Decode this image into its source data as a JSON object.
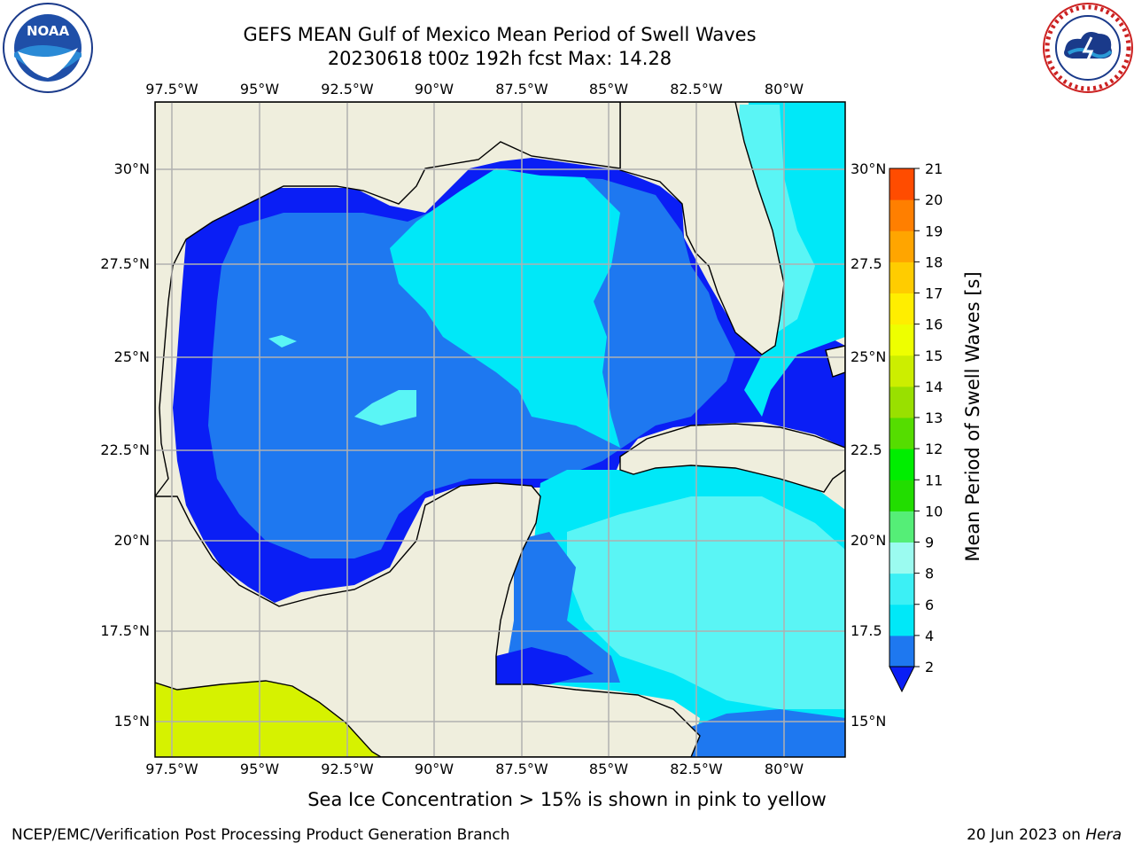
{
  "header": {
    "title_line1": "GEFS MEAN Gulf of Mexico Mean Period of Swell Waves",
    "title_line2": "20230618 t00z 192h fcst   Max: 14.28"
  },
  "map": {
    "lon_labels": [
      "97.5°W",
      "95°W",
      "92.5°W",
      "90°W",
      "87.5°W",
      "85°W",
      "82.5°W",
      "80°W"
    ],
    "lat_labels_left": [
      "30°N",
      "27.5°N",
      "25°N",
      "22.5°N",
      "20°N",
      "17.5°N",
      "15°N"
    ],
    "lat_labels_right": [
      "30°N",
      "27.5",
      "25°N",
      "22.5",
      "20°N",
      "17.5",
      "15°N"
    ],
    "colors": {
      "land": "#efeedd",
      "deep_blue": "#0a1ef5",
      "blue": "#1e78f0",
      "cyan": "#00e8f8",
      "light_cyan": "#5af5f5",
      "ice_yellow": "#d6f200"
    }
  },
  "colorbar": {
    "label": "Mean Period of Swell Waves [s]",
    "ticks": [
      "2",
      "4",
      "6",
      "8",
      "9",
      "10",
      "11",
      "12",
      "13",
      "14",
      "15",
      "16",
      "17",
      "18",
      "19",
      "20",
      "21"
    ],
    "colors": [
      "#1e78f0",
      "#00e8f8",
      "#3cf0f5",
      "#9bfbf0",
      "#55ee77",
      "#22dd00",
      "#00ee00",
      "#55dd00",
      "#99e000",
      "#ccee00",
      "#eeff00",
      "#ffee00",
      "#ffcc00",
      "#ffa500",
      "#ff7f00",
      "#ff4c00",
      "#ff1a00",
      "#ff0000"
    ],
    "extend_color": "#0a1ef5"
  },
  "footer": {
    "note": "Sea Ice Concentration > 15% is shown in pink to yellow",
    "left": "NCEP/EMC/Verification Post Processing Product Generation Branch",
    "right_date": "20 Jun 2023 on ",
    "right_host": "Hera"
  }
}
